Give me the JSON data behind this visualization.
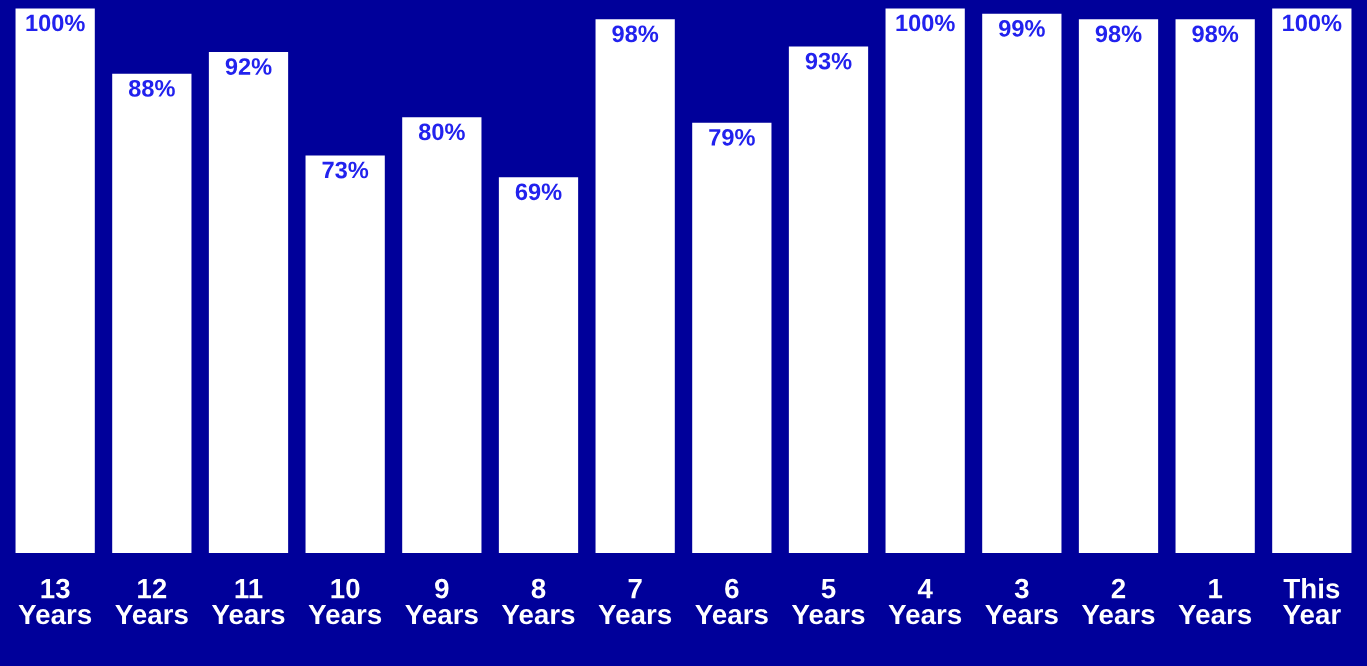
{
  "chart_data": {
    "type": "bar",
    "categories": [
      "13\nYears",
      "12\nYears",
      "11\nYears",
      "10\nYears",
      "9\nYears",
      "8\nYears",
      "7\nYears",
      "6\nYears",
      "5\nYears",
      "4\nYears",
      "3\nYears",
      "2\nYears",
      "1\nYears",
      "This\nYear"
    ],
    "values": [
      100,
      88,
      92,
      73,
      80,
      69,
      98,
      79,
      93,
      100,
      99,
      98,
      98,
      100
    ],
    "color": "#ffffff",
    "value_labels": [
      "100%",
      "88%",
      "92%",
      "73%",
      "80%",
      "69%",
      "98%",
      "79%",
      "93%",
      "100%",
      "99%",
      "98%",
      "98%",
      "100%"
    ],
    "grid": false,
    "legend": false
  }
}
